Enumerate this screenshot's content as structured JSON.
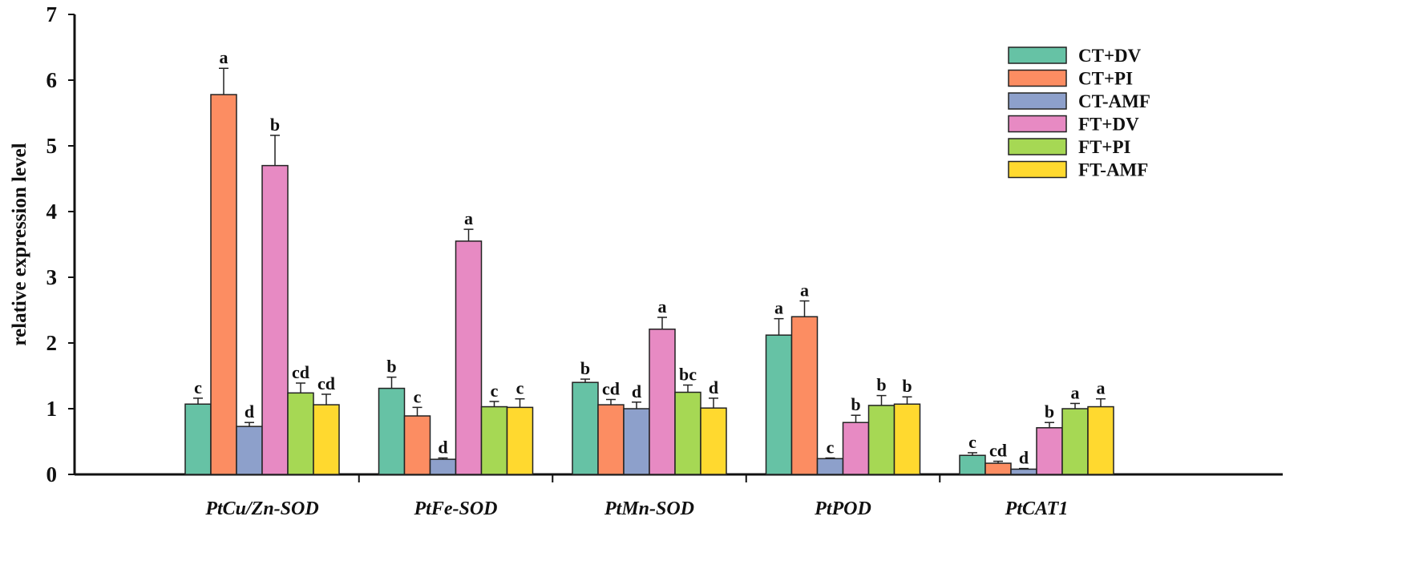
{
  "chart_data": {
    "type": "bar",
    "title": "",
    "xlabel": "",
    "ylabel": "relative expression level",
    "ylim": [
      0,
      7
    ],
    "yticks": [
      "0",
      "1",
      "2",
      "3",
      "4",
      "5",
      "6",
      "7"
    ],
    "grid": false,
    "legend_position": "top-right",
    "categories": [
      "PtCu/Zn-SOD",
      "PtFe-SOD",
      "PtMn-SOD",
      "PtPOD",
      "PtCAT1"
    ],
    "series": [
      {
        "name": "CT+DV",
        "color": "#66c2a5",
        "values": [
          1.07,
          1.31,
          1.4,
          2.12,
          0.29
        ],
        "errors": [
          0.09,
          0.17,
          0.05,
          0.25,
          0.04
        ],
        "letters": [
          "c",
          "b",
          "b",
          "a",
          "c"
        ]
      },
      {
        "name": "CT+PI",
        "color": "#fc8d62",
        "values": [
          5.78,
          0.89,
          1.06,
          2.4,
          0.17
        ],
        "errors": [
          0.4,
          0.13,
          0.08,
          0.24,
          0.03
        ],
        "letters": [
          "a",
          "c",
          "cd",
          "a",
          "cd"
        ]
      },
      {
        "name": "CT-AMF",
        "color": "#8da0cb",
        "values": [
          0.73,
          0.23,
          1.0,
          0.24,
          0.08
        ],
        "errors": [
          0.06,
          0.02,
          0.1,
          0.01,
          0.01
        ],
        "letters": [
          "d",
          "d",
          "d",
          "c",
          "d"
        ]
      },
      {
        "name": "FT+DV",
        "color": "#e78ac3",
        "values": [
          4.7,
          3.55,
          2.21,
          0.79,
          0.71
        ],
        "errors": [
          0.46,
          0.18,
          0.18,
          0.11,
          0.08
        ],
        "letters": [
          "b",
          "a",
          "a",
          "b",
          "b"
        ]
      },
      {
        "name": "FT+PI",
        "color": "#a6d854",
        "values": [
          1.24,
          1.03,
          1.25,
          1.05,
          1.0
        ],
        "errors": [
          0.15,
          0.08,
          0.11,
          0.15,
          0.08
        ],
        "letters": [
          "cd",
          "c",
          "bc",
          "b",
          "a"
        ]
      },
      {
        "name": "FT-AMF",
        "color": "#ffd92f",
        "values": [
          1.06,
          1.02,
          1.01,
          1.07,
          1.03
        ],
        "errors": [
          0.16,
          0.13,
          0.15,
          0.11,
          0.12
        ],
        "letters": [
          "cd",
          "c",
          "d",
          "b",
          "a"
        ]
      }
    ]
  }
}
